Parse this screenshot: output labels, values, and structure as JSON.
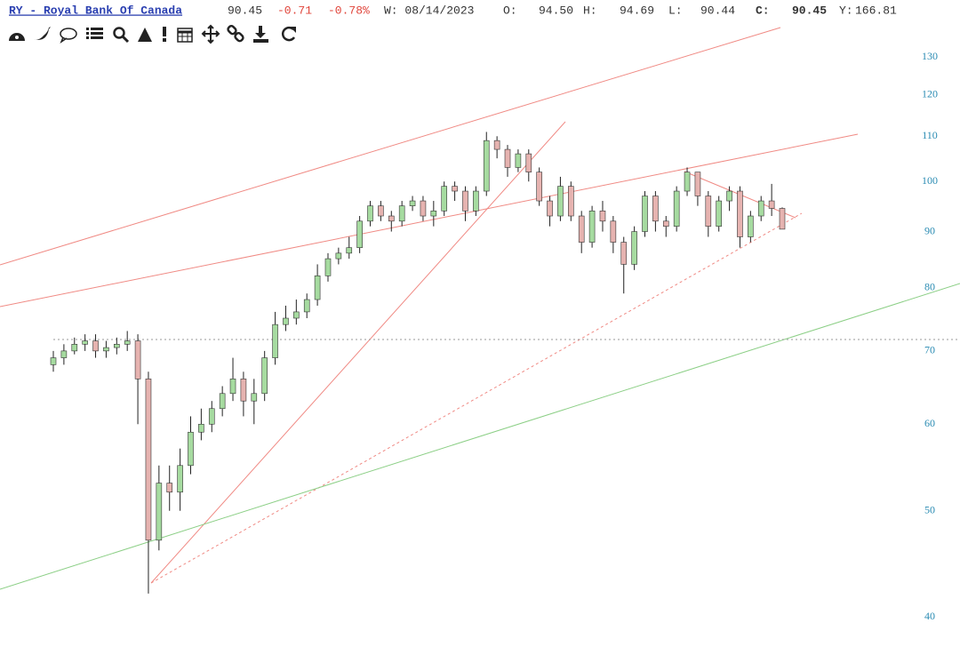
{
  "header": {
    "symbol": "RY - Royal Bank Of Canada",
    "last": "90.45",
    "change": "-0.71",
    "change_pct": "-0.78%",
    "period": "W: 08/14/2023",
    "open_label": "O:",
    "open": "94.50",
    "high_label": "H:",
    "high": "94.69",
    "low_label": "L:",
    "low": "90.44",
    "close_label": "C:",
    "close": "90.45",
    "yearly_label": "Y:",
    "yearly": "166.81"
  },
  "chart_data": {
    "type": "candlestick",
    "log_scale": true,
    "up_color": "#a6dba0",
    "down_color": "#e6b3b0",
    "categories": [
      null,
      null,
      null,
      null,
      null,
      null,
      null,
      null,
      null,
      null,
      null,
      null,
      null,
      null,
      null,
      null,
      null,
      null,
      null,
      null,
      null,
      null,
      null,
      null,
      null,
      null,
      null,
      null,
      null,
      null,
      null,
      null,
      null,
      null,
      null,
      null,
      null,
      null,
      null,
      null,
      null,
      null,
      null,
      null,
      null,
      null,
      null,
      null,
      null,
      null,
      null,
      null,
      null,
      null,
      null,
      null,
      null,
      null,
      null,
      null,
      null,
      null,
      null,
      null,
      null,
      null,
      null,
      null,
      null,
      null
    ],
    "open": [
      68,
      69,
      70,
      71,
      71.5,
      70,
      70.5,
      71,
      71.5,
      66,
      47,
      53,
      52,
      55,
      59,
      60,
      62,
      64,
      66,
      63,
      64,
      69,
      74,
      75,
      76,
      78,
      82,
      85,
      86,
      87,
      92,
      95,
      93,
      92,
      95,
      96,
      93,
      94,
      99,
      98,
      94,
      98,
      109,
      107,
      103,
      106,
      102,
      96,
      93,
      99,
      93,
      88,
      94,
      92,
      88,
      84,
      90,
      97,
      92,
      91,
      98,
      102,
      97,
      91,
      96,
      98,
      89,
      93,
      96,
      94.5
    ],
    "high": [
      70,
      71,
      72,
      72.5,
      72.5,
      71.5,
      72,
      73,
      72.5,
      67,
      55,
      55,
      57,
      61,
      62,
      63,
      65,
      69,
      67,
      66,
      70,
      76,
      77,
      78,
      79,
      84,
      86,
      87,
      89,
      93,
      96,
      96,
      94,
      96,
      97,
      97,
      96,
      100,
      100,
      99,
      99,
      111,
      110,
      108,
      107,
      107,
      103,
      97,
      101,
      100,
      94,
      95,
      96,
      93,
      89,
      91,
      98,
      98,
      93,
      99,
      103,
      102,
      98,
      97,
      99,
      99,
      94,
      97,
      99.5,
      94.69
    ],
    "low": [
      67,
      68,
      69.5,
      70,
      69,
      69,
      69.5,
      70,
      60,
      42,
      46,
      50,
      50,
      54,
      58,
      59,
      61,
      63,
      61,
      60,
      63,
      68,
      73,
      74,
      75,
      77,
      81,
      84,
      85,
      86,
      91,
      92,
      90,
      91,
      94,
      92,
      91,
      93,
      96,
      92,
      93,
      97,
      105,
      101,
      102,
      100,
      95,
      91,
      92,
      92,
      86,
      87,
      90,
      86,
      79,
      83,
      89,
      90,
      89,
      90,
      97,
      95,
      89,
      90,
      94,
      87,
      88,
      92,
      93,
      90.44
    ],
    "close": [
      69,
      70,
      71,
      71.5,
      70,
      70.5,
      71,
      71.5,
      66,
      47,
      53,
      52,
      55,
      59,
      60,
      62,
      64,
      66,
      63,
      64,
      69,
      74,
      75,
      76,
      78,
      82,
      85,
      86,
      87,
      92,
      95,
      93,
      92,
      95,
      96,
      93,
      94,
      99,
      98,
      94,
      98,
      109,
      107,
      103,
      106,
      102,
      96,
      93,
      99,
      93,
      88,
      94,
      92,
      88,
      84,
      90,
      97,
      92,
      91,
      98,
      102,
      97,
      91,
      96,
      98,
      89,
      93,
      96,
      94.5,
      90.45
    ],
    "ylim": [
      40,
      130
    ],
    "yticks": [
      40,
      50,
      60,
      70,
      80,
      90,
      100,
      110,
      120,
      130
    ]
  }
}
